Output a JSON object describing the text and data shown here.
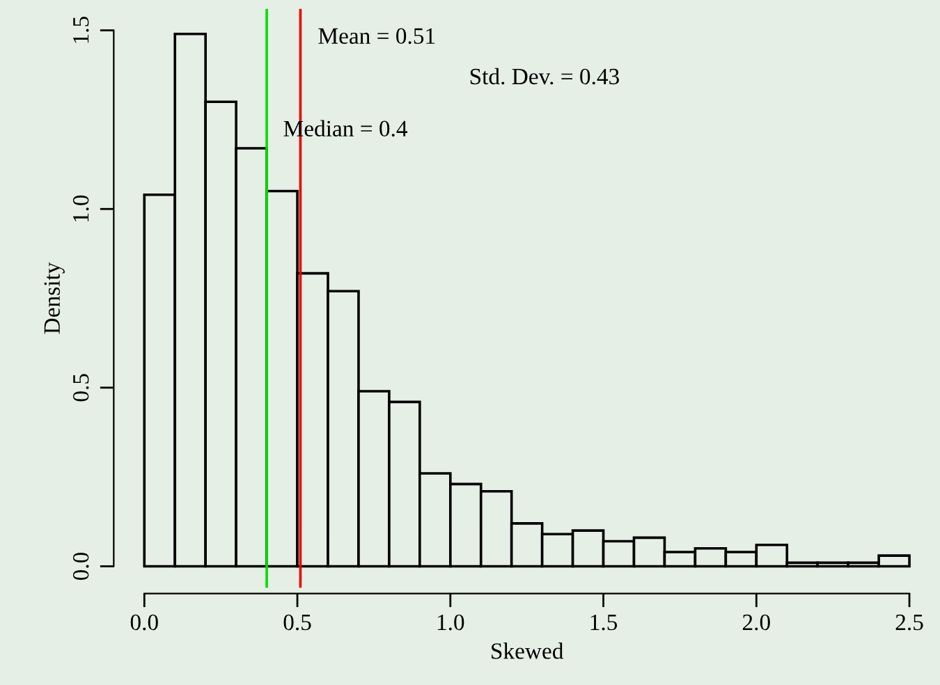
{
  "chart_data": {
    "type": "histogram",
    "xlabel": "Skewed",
    "ylabel": "Density",
    "bins": [
      0.0,
      0.1,
      0.2,
      0.3,
      0.4,
      0.5,
      0.6,
      0.7,
      0.8,
      0.9,
      1.0,
      1.1,
      1.2,
      1.3,
      1.4,
      1.5,
      1.6,
      1.7,
      1.8,
      1.9,
      2.0,
      2.1,
      2.2,
      2.3,
      2.4,
      2.5
    ],
    "values": [
      1.04,
      1.49,
      1.3,
      1.17,
      1.05,
      0.82,
      0.77,
      0.49,
      0.46,
      0.26,
      0.23,
      0.21,
      0.12,
      0.09,
      0.1,
      0.07,
      0.08,
      0.04,
      0.05,
      0.04,
      0.06,
      0.01,
      0.01,
      0.01,
      0.03
    ],
    "color": "#e5efe5",
    "xlim": [
      -0.1,
      2.6
    ],
    "ylim": [
      -0.06,
      1.56
    ],
    "xticks": [
      {
        "value": 0,
        "label": "0.0"
      },
      0.5,
      {
        "value": 1,
        "label": "1.0"
      },
      1.5,
      {
        "value": 2,
        "label": "2.0"
      },
      2.5
    ],
    "yticks": [
      {
        "value": 0,
        "label": "0.0"
      },
      0.5,
      {
        "value": 1,
        "label": "1.0"
      },
      1.5
    ],
    "ref_lines": [
      {
        "axis": "x",
        "value": 0.4,
        "color": "#00dd00"
      },
      {
        "axis": "x",
        "value": 0.51,
        "color": "#ee0000"
      }
    ],
    "annotations": [
      "Mean = 0.51",
      "Std. Dev. = 0.43",
      "Median = 0.4"
    ],
    "grid": false,
    "legend": false
  }
}
